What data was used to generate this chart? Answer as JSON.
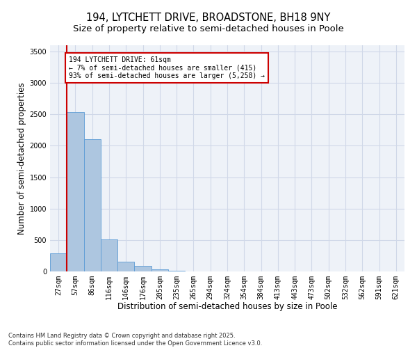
{
  "title_line1": "194, LYTCHETT DRIVE, BROADSTONE, BH18 9NY",
  "title_line2": "Size of property relative to semi-detached houses in Poole",
  "xlabel": "Distribution of semi-detached houses by size in Poole",
  "ylabel": "Number of semi-detached properties",
  "categories": [
    "27sqm",
    "57sqm",
    "86sqm",
    "116sqm",
    "146sqm",
    "176sqm",
    "205sqm",
    "235sqm",
    "265sqm",
    "294sqm",
    "324sqm",
    "354sqm",
    "384sqm",
    "413sqm",
    "443sqm",
    "473sqm",
    "502sqm",
    "532sqm",
    "562sqm",
    "591sqm",
    "621sqm"
  ],
  "values": [
    290,
    2540,
    2110,
    510,
    155,
    85,
    30,
    8,
    0,
    0,
    0,
    0,
    0,
    0,
    0,
    0,
    0,
    0,
    0,
    0,
    0
  ],
  "bar_color": "#adc6e0",
  "bar_edge_color": "#5b9bd5",
  "grid_color": "#d0d8e8",
  "background_color": "#eef2f8",
  "vline_color": "#cc0000",
  "annotation_line1": "194 LYTCHETT DRIVE: 61sqm",
  "annotation_line2": "← 7% of semi-detached houses are smaller (415)",
  "annotation_line3": "93% of semi-detached houses are larger (5,258) →",
  "annotation_box_color": "#cc0000",
  "ylim": [
    0,
    3600
  ],
  "yticks": [
    0,
    500,
    1000,
    1500,
    2000,
    2500,
    3000,
    3500
  ],
  "footer_line1": "Contains HM Land Registry data © Crown copyright and database right 2025.",
  "footer_line2": "Contains public sector information licensed under the Open Government Licence v3.0.",
  "title_fontsize": 10.5,
  "subtitle_fontsize": 9.5,
  "axis_label_fontsize": 8.5,
  "tick_fontsize": 7,
  "annotation_fontsize": 7,
  "footer_fontsize": 6
}
